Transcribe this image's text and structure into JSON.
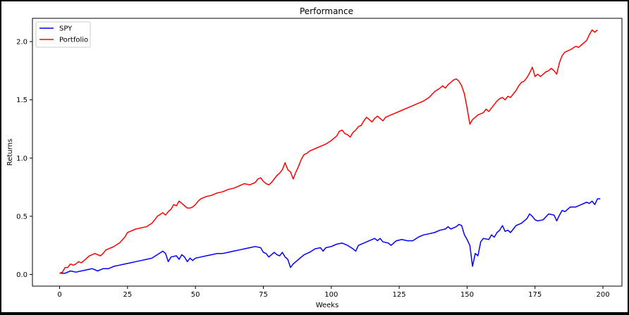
{
  "colors": {
    "background": "#ffffff",
    "frame": "#000000",
    "spy": "#0000ff",
    "portfolio": "#ff0000"
  },
  "chart_data": {
    "type": "line",
    "title": "Performance",
    "xlabel": "Weeks",
    "ylabel": "Returns",
    "xlim": [
      -10,
      207
    ],
    "ylim": [
      -0.1,
      2.2
    ],
    "xticks": [
      0,
      25,
      50,
      75,
      100,
      125,
      150,
      175,
      200
    ],
    "xtick_labels": [
      "0",
      "25",
      "50",
      "75",
      "100",
      "125",
      "150",
      "175",
      "200"
    ],
    "yticks": [
      0.0,
      0.5,
      1.0,
      1.5,
      2.0
    ],
    "ytick_labels": [
      "0.0",
      "0.5",
      "1.0",
      "1.5",
      "2.0"
    ],
    "grid": false,
    "legend": "upper-left",
    "series": [
      {
        "name": "SPY",
        "color": "#0000ff",
        "points": [
          [
            0,
            0.01
          ],
          [
            2,
            0.01
          ],
          [
            4,
            0.03
          ],
          [
            6,
            0.02
          ],
          [
            8,
            0.03
          ],
          [
            10,
            0.04
          ],
          [
            12,
            0.05
          ],
          [
            14,
            0.03
          ],
          [
            16,
            0.05
          ],
          [
            18,
            0.05
          ],
          [
            20,
            0.07
          ],
          [
            22,
            0.08
          ],
          [
            24,
            0.09
          ],
          [
            26,
            0.1
          ],
          [
            28,
            0.11
          ],
          [
            30,
            0.12
          ],
          [
            32,
            0.13
          ],
          [
            34,
            0.14
          ],
          [
            36,
            0.17
          ],
          [
            38,
            0.2
          ],
          [
            39,
            0.18
          ],
          [
            40,
            0.11
          ],
          [
            41,
            0.15
          ],
          [
            43,
            0.16
          ],
          [
            44,
            0.13
          ],
          [
            45,
            0.17
          ],
          [
            46,
            0.15
          ],
          [
            47,
            0.11
          ],
          [
            48,
            0.14
          ],
          [
            49,
            0.12
          ],
          [
            50,
            0.14
          ],
          [
            52,
            0.15
          ],
          [
            54,
            0.16
          ],
          [
            56,
            0.17
          ],
          [
            58,
            0.18
          ],
          [
            60,
            0.18
          ],
          [
            62,
            0.19
          ],
          [
            64,
            0.2
          ],
          [
            66,
            0.21
          ],
          [
            68,
            0.22
          ],
          [
            70,
            0.23
          ],
          [
            72,
            0.24
          ],
          [
            74,
            0.23
          ],
          [
            75,
            0.19
          ],
          [
            76,
            0.18
          ],
          [
            77,
            0.15
          ],
          [
            78,
            0.17
          ],
          [
            79,
            0.19
          ],
          [
            80,
            0.17
          ],
          [
            81,
            0.16
          ],
          [
            82,
            0.19
          ],
          [
            83,
            0.15
          ],
          [
            84,
            0.13
          ],
          [
            85,
            0.06
          ],
          [
            86,
            0.09
          ],
          [
            88,
            0.13
          ],
          [
            90,
            0.17
          ],
          [
            92,
            0.19
          ],
          [
            94,
            0.22
          ],
          [
            96,
            0.23
          ],
          [
            97,
            0.2
          ],
          [
            98,
            0.23
          ],
          [
            100,
            0.24
          ],
          [
            102,
            0.26
          ],
          [
            104,
            0.27
          ],
          [
            106,
            0.25
          ],
          [
            108,
            0.22
          ],
          [
            109,
            0.2
          ],
          [
            110,
            0.25
          ],
          [
            112,
            0.27
          ],
          [
            114,
            0.29
          ],
          [
            116,
            0.31
          ],
          [
            117,
            0.29
          ],
          [
            118,
            0.31
          ],
          [
            119,
            0.28
          ],
          [
            121,
            0.27
          ],
          [
            122,
            0.25
          ],
          [
            124,
            0.29
          ],
          [
            126,
            0.3
          ],
          [
            128,
            0.29
          ],
          [
            130,
            0.29
          ],
          [
            132,
            0.32
          ],
          [
            134,
            0.34
          ],
          [
            136,
            0.35
          ],
          [
            138,
            0.36
          ],
          [
            140,
            0.38
          ],
          [
            142,
            0.39
          ],
          [
            143,
            0.41
          ],
          [
            144,
            0.39
          ],
          [
            146,
            0.41
          ],
          [
            147,
            0.43
          ],
          [
            148,
            0.42
          ],
          [
            149,
            0.34
          ],
          [
            150,
            0.3
          ],
          [
            151,
            0.25
          ],
          [
            152,
            0.07
          ],
          [
            153,
            0.18
          ],
          [
            154,
            0.16
          ],
          [
            155,
            0.28
          ],
          [
            156,
            0.31
          ],
          [
            158,
            0.3
          ],
          [
            159,
            0.34
          ],
          [
            160,
            0.32
          ],
          [
            161,
            0.36
          ],
          [
            162,
            0.38
          ],
          [
            163,
            0.42
          ],
          [
            164,
            0.37
          ],
          [
            165,
            0.38
          ],
          [
            166,
            0.36
          ],
          [
            168,
            0.42
          ],
          [
            170,
            0.44
          ],
          [
            172,
            0.48
          ],
          [
            173,
            0.52
          ],
          [
            174,
            0.5
          ],
          [
            175,
            0.47
          ],
          [
            176,
            0.46
          ],
          [
            178,
            0.47
          ],
          [
            180,
            0.52
          ],
          [
            182,
            0.51
          ],
          [
            183,
            0.46
          ],
          [
            184,
            0.51
          ],
          [
            185,
            0.55
          ],
          [
            186,
            0.54
          ],
          [
            188,
            0.58
          ],
          [
            190,
            0.58
          ],
          [
            192,
            0.6
          ],
          [
            194,
            0.62
          ],
          [
            195,
            0.61
          ],
          [
            196,
            0.63
          ],
          [
            197,
            0.6
          ],
          [
            198,
            0.65
          ],
          [
            199,
            0.65
          ]
        ]
      },
      {
        "name": "Portfolio",
        "color": "#ff0000",
        "points": [
          [
            0,
            0.01
          ],
          [
            1,
            0.02
          ],
          [
            2,
            0.06
          ],
          [
            3,
            0.06
          ],
          [
            4,
            0.09
          ],
          [
            5,
            0.08
          ],
          [
            6,
            0.09
          ],
          [
            7,
            0.11
          ],
          [
            8,
            0.1
          ],
          [
            9,
            0.12
          ],
          [
            10,
            0.14
          ],
          [
            11,
            0.16
          ],
          [
            12,
            0.17
          ],
          [
            13,
            0.18
          ],
          [
            14,
            0.17
          ],
          [
            15,
            0.16
          ],
          [
            16,
            0.18
          ],
          [
            17,
            0.21
          ],
          [
            18,
            0.22
          ],
          [
            19,
            0.23
          ],
          [
            20,
            0.24
          ],
          [
            22,
            0.27
          ],
          [
            24,
            0.32
          ],
          [
            25,
            0.36
          ],
          [
            26,
            0.37
          ],
          [
            28,
            0.39
          ],
          [
            30,
            0.4
          ],
          [
            32,
            0.41
          ],
          [
            34,
            0.44
          ],
          [
            35,
            0.47
          ],
          [
            36,
            0.5
          ],
          [
            38,
            0.53
          ],
          [
            39,
            0.51
          ],
          [
            40,
            0.54
          ],
          [
            41,
            0.56
          ],
          [
            42,
            0.6
          ],
          [
            43,
            0.59
          ],
          [
            44,
            0.63
          ],
          [
            45,
            0.61
          ],
          [
            46,
            0.59
          ],
          [
            47,
            0.57
          ],
          [
            48,
            0.57
          ],
          [
            49,
            0.58
          ],
          [
            50,
            0.6
          ],
          [
            51,
            0.63
          ],
          [
            52,
            0.65
          ],
          [
            54,
            0.67
          ],
          [
            56,
            0.68
          ],
          [
            58,
            0.7
          ],
          [
            60,
            0.71
          ],
          [
            62,
            0.73
          ],
          [
            64,
            0.74
          ],
          [
            66,
            0.76
          ],
          [
            68,
            0.78
          ],
          [
            70,
            0.77
          ],
          [
            72,
            0.79
          ],
          [
            73,
            0.82
          ],
          [
            74,
            0.83
          ],
          [
            75,
            0.8
          ],
          [
            76,
            0.78
          ],
          [
            77,
            0.77
          ],
          [
            78,
            0.79
          ],
          [
            79,
            0.82
          ],
          [
            80,
            0.85
          ],
          [
            81,
            0.87
          ],
          [
            82,
            0.9
          ],
          [
            83,
            0.96
          ],
          [
            84,
            0.9
          ],
          [
            85,
            0.88
          ],
          [
            86,
            0.82
          ],
          [
            87,
            0.88
          ],
          [
            88,
            0.93
          ],
          [
            89,
            0.99
          ],
          [
            90,
            1.03
          ],
          [
            91,
            1.04
          ],
          [
            92,
            1.06
          ],
          [
            94,
            1.08
          ],
          [
            96,
            1.1
          ],
          [
            98,
            1.12
          ],
          [
            100,
            1.15
          ],
          [
            101,
            1.17
          ],
          [
            102,
            1.19
          ],
          [
            103,
            1.23
          ],
          [
            104,
            1.24
          ],
          [
            105,
            1.21
          ],
          [
            106,
            1.2
          ],
          [
            107,
            1.18
          ],
          [
            108,
            1.22
          ],
          [
            109,
            1.24
          ],
          [
            110,
            1.27
          ],
          [
            111,
            1.28
          ],
          [
            112,
            1.32
          ],
          [
            113,
            1.35
          ],
          [
            114,
            1.33
          ],
          [
            115,
            1.31
          ],
          [
            116,
            1.34
          ],
          [
            117,
            1.36
          ],
          [
            118,
            1.34
          ],
          [
            119,
            1.32
          ],
          [
            120,
            1.35
          ],
          [
            122,
            1.37
          ],
          [
            124,
            1.39
          ],
          [
            126,
            1.41
          ],
          [
            128,
            1.43
          ],
          [
            130,
            1.45
          ],
          [
            132,
            1.47
          ],
          [
            134,
            1.49
          ],
          [
            136,
            1.52
          ],
          [
            138,
            1.57
          ],
          [
            140,
            1.6
          ],
          [
            141,
            1.62
          ],
          [
            142,
            1.6
          ],
          [
            143,
            1.63
          ],
          [
            144,
            1.65
          ],
          [
            145,
            1.67
          ],
          [
            146,
            1.68
          ],
          [
            147,
            1.66
          ],
          [
            148,
            1.62
          ],
          [
            149,
            1.55
          ],
          [
            150,
            1.43
          ],
          [
            151,
            1.29
          ],
          [
            152,
            1.33
          ],
          [
            153,
            1.35
          ],
          [
            154,
            1.37
          ],
          [
            156,
            1.39
          ],
          [
            157,
            1.42
          ],
          [
            158,
            1.4
          ],
          [
            159,
            1.43
          ],
          [
            160,
            1.46
          ],
          [
            161,
            1.49
          ],
          [
            162,
            1.51
          ],
          [
            163,
            1.52
          ],
          [
            164,
            1.5
          ],
          [
            165,
            1.53
          ],
          [
            166,
            1.52
          ],
          [
            167,
            1.55
          ],
          [
            168,
            1.58
          ],
          [
            169,
            1.62
          ],
          [
            170,
            1.65
          ],
          [
            171,
            1.66
          ],
          [
            172,
            1.69
          ],
          [
            173,
            1.73
          ],
          [
            174,
            1.78
          ],
          [
            175,
            1.7
          ],
          [
            176,
            1.72
          ],
          [
            177,
            1.7
          ],
          [
            178,
            1.72
          ],
          [
            179,
            1.74
          ],
          [
            180,
            1.75
          ],
          [
            181,
            1.77
          ],
          [
            182,
            1.75
          ],
          [
            183,
            1.72
          ],
          [
            184,
            1.82
          ],
          [
            185,
            1.88
          ],
          [
            186,
            1.91
          ],
          [
            188,
            1.93
          ],
          [
            190,
            1.96
          ],
          [
            191,
            1.95
          ],
          [
            192,
            1.97
          ],
          [
            193,
            1.99
          ],
          [
            194,
            2.01
          ],
          [
            195,
            2.06
          ],
          [
            196,
            2.1
          ],
          [
            197,
            2.08
          ],
          [
            198,
            2.1
          ]
        ]
      }
    ]
  }
}
